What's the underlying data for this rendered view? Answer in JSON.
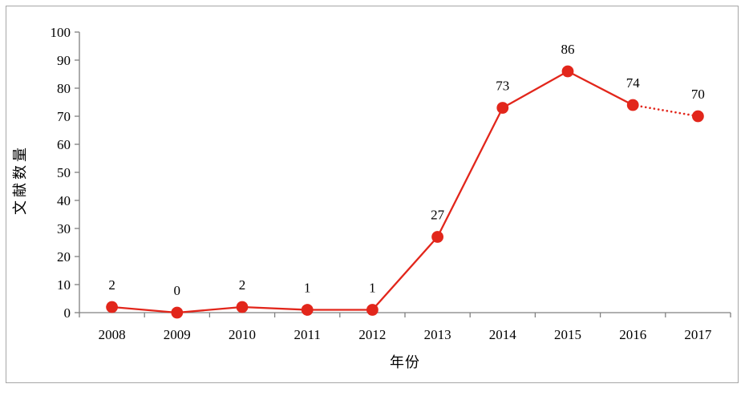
{
  "chart_data": {
    "type": "line",
    "title": "",
    "categories": [
      "2008",
      "2009",
      "2010",
      "2011",
      "2012",
      "2013",
      "2014",
      "2015",
      "2016",
      "2017"
    ],
    "series": [
      {
        "name": "文献数量",
        "values": [
          2,
          0,
          2,
          1,
          1,
          27,
          73,
          86,
          74,
          70
        ]
      }
    ],
    "point_labels": [
      "2",
      "0",
      "2",
      "1",
      "1",
      "27",
      "73",
      "86",
      "74",
      "70"
    ],
    "xlabel": "年份",
    "ylabel": "文献数量",
    "ylim": [
      0,
      100
    ],
    "ytick_step": 10,
    "ytick_labels": [
      "0",
      "10",
      "20",
      "30",
      "40",
      "50",
      "60",
      "70",
      "80",
      "90",
      "100"
    ],
    "grid": false,
    "legend": "none",
    "marker": "circle",
    "forecast_segment": {
      "from_category": "2016",
      "to_category": "2017",
      "line_style": "dotted"
    }
  },
  "colors": {
    "series_red": "#e2261b",
    "axis_gray": "#808080",
    "frame_gray": "#a6a6a6",
    "text_black": "#000000",
    "background": "#ffffff"
  }
}
